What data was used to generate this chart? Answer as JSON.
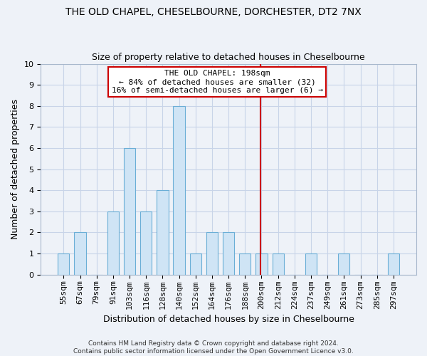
{
  "title": "THE OLD CHAPEL, CHESELBOURNE, DORCHESTER, DT2 7NX",
  "subtitle": "Size of property relative to detached houses in Cheselbourne",
  "xlabel": "Distribution of detached houses by size in Cheselbourne",
  "ylabel": "Number of detached properties",
  "footer_line1": "Contains HM Land Registry data © Crown copyright and database right 2024.",
  "footer_line2": "Contains public sector information licensed under the Open Government Licence v3.0.",
  "bin_labels": [
    "55sqm",
    "67sqm",
    "79sqm",
    "91sqm",
    "103sqm",
    "116sqm",
    "128sqm",
    "140sqm",
    "152sqm",
    "164sqm",
    "176sqm",
    "188sqm",
    "200sqm",
    "212sqm",
    "224sqm",
    "237sqm",
    "249sqm",
    "261sqm",
    "273sqm",
    "285sqm",
    "297sqm"
  ],
  "bar_heights": [
    1,
    2,
    0,
    3,
    6,
    3,
    4,
    8,
    1,
    2,
    2,
    1,
    1,
    1,
    0,
    1,
    0,
    1,
    0,
    0,
    1
  ],
  "bar_color": "#cfe4f5",
  "bar_edgecolor": "#6aaed6",
  "bar_width": 0.7,
  "property_line_bin_index": 11.917,
  "ylim": [
    0,
    10
  ],
  "yticks": [
    0,
    1,
    2,
    3,
    4,
    5,
    6,
    7,
    8,
    9,
    10
  ],
  "annotation_title": "THE OLD CHAPEL: 198sqm",
  "annotation_line1": "← 84% of detached houses are smaller (32)",
  "annotation_line2": "16% of semi-detached houses are larger (6) →",
  "annotation_box_color": "#cc0000",
  "grid_color": "#c8d4e8",
  "background_color": "#eef2f8",
  "title_fontsize": 10,
  "subtitle_fontsize": 9,
  "ylabel_fontsize": 9,
  "xlabel_fontsize": 9,
  "tick_fontsize": 8,
  "annotation_fontsize": 8,
  "footer_fontsize": 6.5
}
